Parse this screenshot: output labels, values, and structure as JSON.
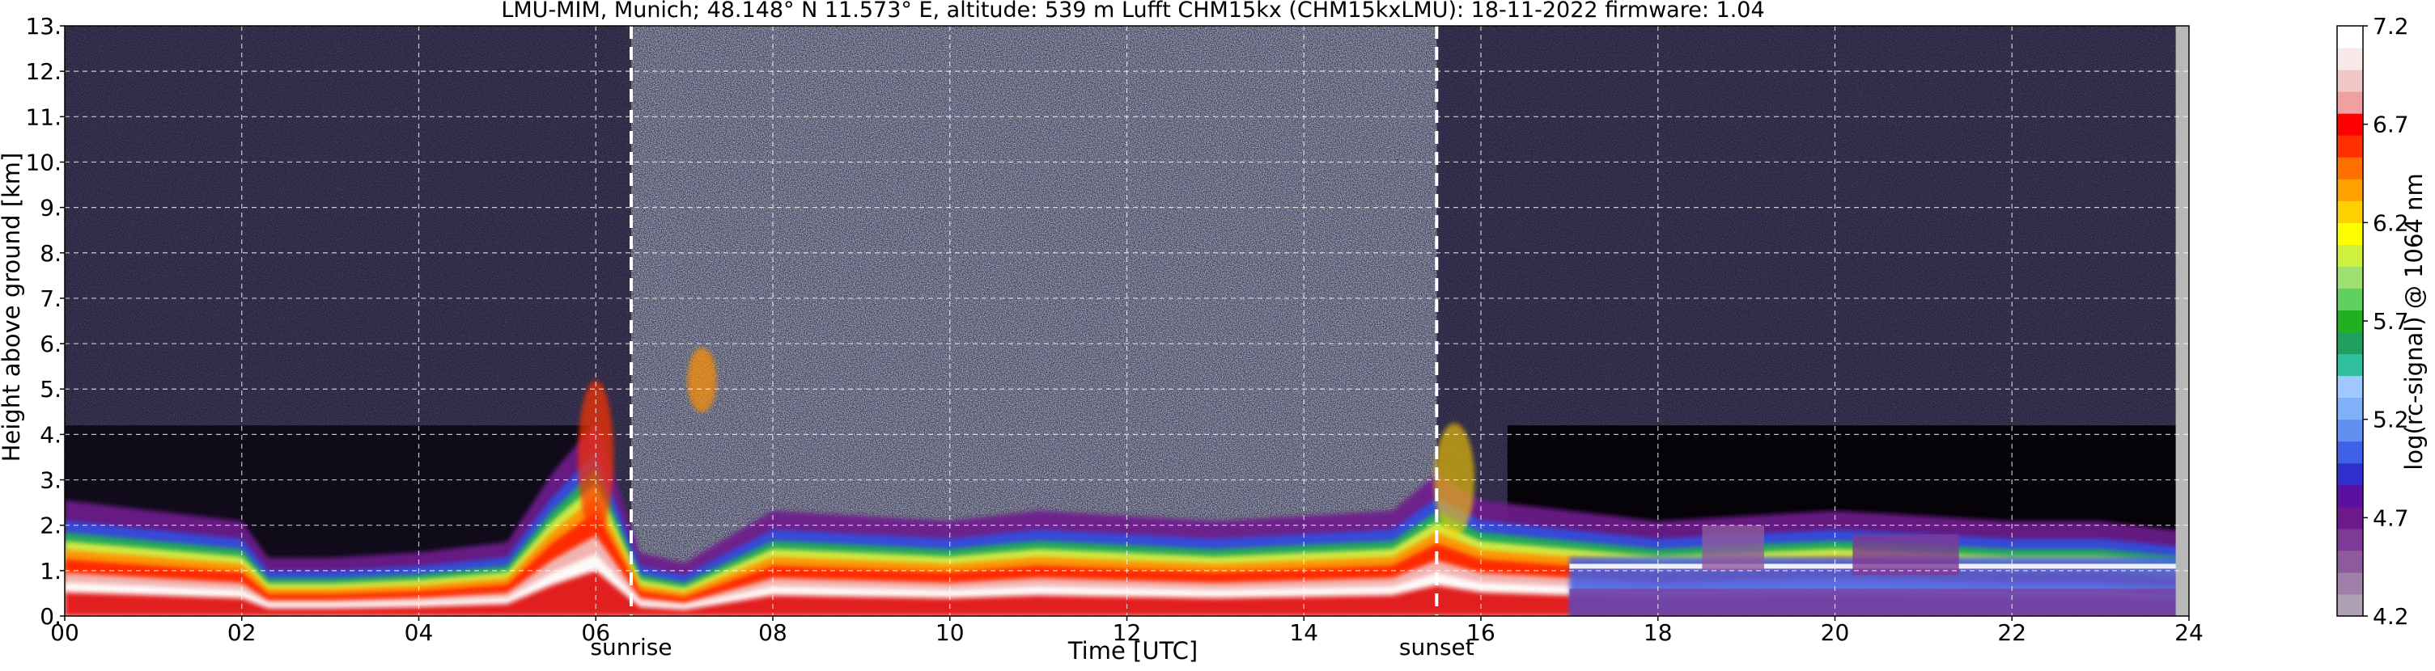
{
  "chart_data": {
    "type": "heatmap",
    "title": "LMU-MIM, Munich; 48.148° N 11.573° E, altitude: 539 m    Lufft CHM15kx (CHM15kxLMU): 18-11-2022    firmware: 1.04",
    "xlabel": "Time [UTC]",
    "ylabel": "Height above ground [km]",
    "xlim": [
      0,
      24
    ],
    "ylim": [
      0,
      13
    ],
    "x_ticks": [
      0,
      2,
      4,
      6,
      8,
      10,
      12,
      14,
      16,
      18,
      20,
      22,
      24
    ],
    "x_tick_labels": [
      "00",
      "02",
      "04",
      "06",
      "08",
      "10",
      "12",
      "14",
      "16",
      "18",
      "20",
      "22",
      "24"
    ],
    "y_ticks": [
      0,
      1,
      2,
      3,
      4,
      5,
      6,
      7,
      8,
      9,
      10,
      11,
      12,
      13
    ],
    "y_tick_labels": [
      "0.",
      "1.",
      "2.",
      "3.",
      "4.",
      "5.",
      "6.",
      "7.",
      "8.",
      "9.",
      "10.",
      "11.",
      "12.",
      "13."
    ],
    "grid": true,
    "annotations": [
      {
        "label": "sunrise",
        "x": 6.4
      },
      {
        "label": "sunset",
        "x": 15.5
      }
    ],
    "colorbar": {
      "label": "log(rc-signal) @ 1064 nm",
      "range": [
        4.2,
        7.2
      ],
      "ticks": [
        4.2,
        4.7,
        5.2,
        5.7,
        6.2,
        6.7,
        7.2
      ],
      "tick_labels": [
        "4.2",
        "4.7",
        "5.2",
        "5.7",
        "6.2",
        "6.7",
        "7.2"
      ],
      "colors": [
        "#b0a0b4",
        "#9e80a8",
        "#8e5a9c",
        "#7e3a94",
        "#6e1a8c",
        "#5a10a0",
        "#3030d0",
        "#4060e8",
        "#6090f0",
        "#80b0f8",
        "#a0c8ff",
        "#30c0a0",
        "#20a060",
        "#20b020",
        "#60d060",
        "#a0e070",
        "#d0f040",
        "#ffff00",
        "#ffd000",
        "#ffa000",
        "#ff7000",
        "#ff3000",
        "#ff0000",
        "#f0a0a0",
        "#f0c8c8",
        "#f8e8e8",
        "#ffffff"
      ]
    },
    "profile_note": "attenuated backscatter curtain; boundary-layer aerosol below ~2 km, low cloud/fog ~0.8-1.3 km after 17 UTC, noisy daytime background",
    "layer_series": [
      {
        "name": "aerosol_layer_top",
        "x": [
          0,
          1,
          2,
          2.3,
          3,
          4,
          5,
          5.5,
          6,
          6.5,
          7,
          8,
          9,
          10,
          11,
          12,
          13,
          14,
          15,
          15.5,
          16,
          17,
          18,
          19,
          20,
          21,
          22,
          23,
          24
        ],
        "values": [
          2.0,
          1.8,
          1.6,
          0.9,
          0.9,
          1.0,
          1.2,
          2.5,
          3.5,
          1.0,
          0.8,
          1.8,
          1.7,
          1.6,
          1.8,
          1.7,
          1.6,
          1.7,
          1.8,
          2.5,
          2.0,
          1.8,
          1.6,
          1.7,
          1.8,
          1.7,
          1.6,
          1.6,
          1.4
        ]
      }
    ]
  }
}
